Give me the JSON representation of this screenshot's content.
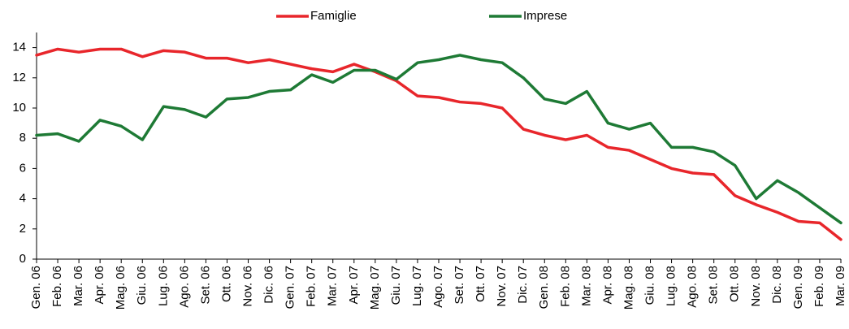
{
  "chart_data": {
    "type": "line",
    "categories": [
      "Gen. 06",
      "Feb. 06",
      "Mar. 06",
      "Apr. 06",
      "Mag. 06",
      "Giu. 06",
      "Lug. 06",
      "Ago. 06",
      "Set. 06",
      "Ott. 06",
      "Nov. 06",
      "Dic. 06",
      "Gen. 07",
      "Feb. 07",
      "Mar. 07",
      "Apr. 07",
      "Mag. 07",
      "Giu. 07",
      "Lug. 07",
      "Ago. 07",
      "Set. 07",
      "Ott. 07",
      "Nov. 07",
      "Dic. 07",
      "Gen. 08",
      "Feb. 08",
      "Mar. 08",
      "Apr. 08",
      "Mag. 08",
      "Giu. 08",
      "Lug. 08",
      "Ago. 08",
      "Set. 08",
      "Ott. 08",
      "Nov. 08",
      "Dic. 08",
      "Gen. 09",
      "Feb. 09",
      "Mar. 09"
    ],
    "series": [
      {
        "name": "Famiglie",
        "color": "#e8262b",
        "values": [
          13.5,
          13.9,
          13.7,
          13.9,
          13.9,
          13.4,
          13.8,
          13.7,
          13.3,
          13.3,
          13.0,
          13.2,
          12.9,
          12.6,
          12.4,
          12.9,
          12.4,
          11.8,
          10.8,
          10.7,
          10.4,
          10.3,
          10.0,
          8.6,
          8.2,
          7.9,
          8.2,
          7.4,
          7.2,
          6.6,
          6.0,
          5.7,
          5.6,
          4.2,
          3.6,
          3.1,
          2.5,
          2.4,
          1.3
        ]
      },
      {
        "name": "Imprese",
        "color": "#1e7a35",
        "values": [
          8.2,
          8.3,
          7.8,
          9.2,
          8.8,
          7.9,
          10.1,
          9.9,
          9.4,
          10.6,
          10.7,
          11.1,
          11.2,
          12.2,
          11.7,
          12.5,
          12.5,
          11.9,
          13.0,
          13.2,
          13.5,
          13.2,
          13.0,
          12.0,
          10.6,
          10.3,
          11.1,
          9.0,
          8.6,
          9.0,
          7.4,
          7.4,
          7.1,
          6.2,
          4.0,
          5.2,
          4.4,
          3.4,
          2.4
        ]
      }
    ],
    "ylim": [
      0,
      15
    ],
    "yticks": [
      0,
      2,
      4,
      6,
      8,
      10,
      12,
      14
    ],
    "grid": false,
    "legend": "top"
  }
}
